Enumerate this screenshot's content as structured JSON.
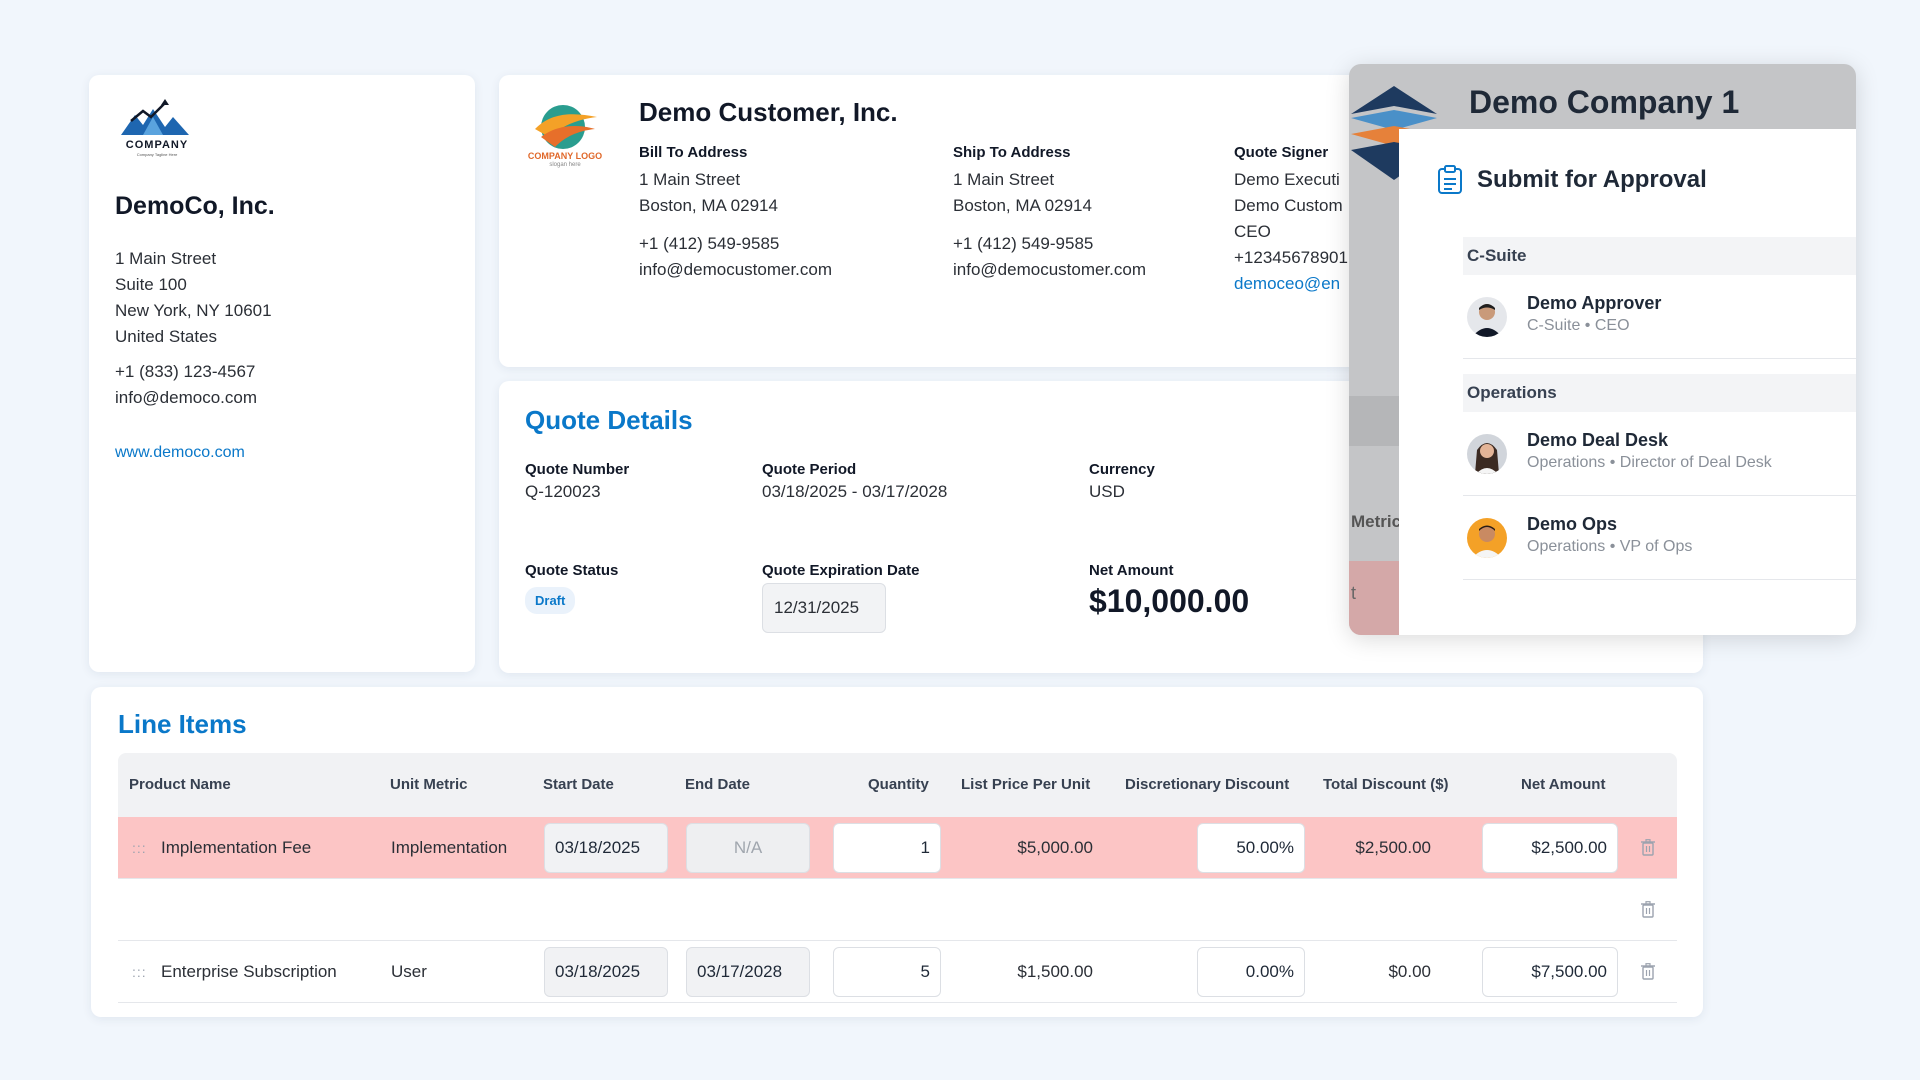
{
  "company": {
    "logo_text": "COMPANY",
    "logo_tagline": "Company Tagline Here",
    "name": "DemoCo, Inc.",
    "address": [
      "1 Main Street",
      "Suite 100",
      "New York, NY 10601",
      "United States"
    ],
    "phone": "+1 (833) 123-4567",
    "email": "info@democo.com",
    "website": "www.democo.com",
    "brand_color": "#1e66b0"
  },
  "customer": {
    "logo_text": "COMPANY LOGO",
    "logo_sub": "slogan here",
    "name": "Demo Customer, Inc.",
    "bill_to": {
      "label": "Bill To Address",
      "line1": "1 Main Street",
      "line2": "Boston, MA 02914",
      "phone": "+1 (412) 549-9585",
      "email": "info@democustomer.com"
    },
    "ship_to": {
      "label": "Ship To Address",
      "line1": "1 Main Street",
      "line2": "Boston, MA 02914",
      "phone": "+1 (412) 549-9585",
      "email": "info@democustomer.com"
    },
    "signer": {
      "label": "Quote Signer",
      "line1": "Demo Executi",
      "line2": "Demo Custom",
      "line3": "CEO",
      "phone": "+12345678901",
      "email": "democeo@en"
    }
  },
  "quote": {
    "title": "Quote Details",
    "number_label": "Quote Number",
    "number": "Q-120023",
    "period_label": "Quote Period",
    "period": "03/18/2025 - 03/17/2028",
    "currency_label": "Currency",
    "currency": "USD",
    "status_label": "Quote Status",
    "status": "Draft",
    "expiration_label": "Quote Expiration Date",
    "expiration": "12/31/2025",
    "net_label": "Net Amount",
    "net": "$10,000.00"
  },
  "line_items": {
    "title": "Line Items",
    "columns": {
      "product": "Product Name",
      "metric": "Unit Metric",
      "start": "Start Date",
      "end": "End Date",
      "qty": "Quantity",
      "list": "List Price Per Unit",
      "disc": "Discretionary Discount",
      "total_disc": "Total Discount ($)",
      "net": "Net Amount"
    },
    "rows": [
      {
        "product": "Implementation Fee",
        "metric": "Implementation",
        "start": "03/18/2025",
        "end": "N/A",
        "qty": "1",
        "list": "$5,000.00",
        "disc": "50.00%",
        "total_disc": "$2,500.00",
        "net": "$2,500.00"
      },
      {
        "product": "Enterprise Subscription",
        "metric": "User",
        "start": "03/18/2025",
        "end": "03/17/2028",
        "qty": "5",
        "list": "$1,500.00",
        "disc": "0.00%",
        "total_disc": "$0.00",
        "net": "$7,500.00"
      }
    ]
  },
  "popup": {
    "company_title": "Demo Company 1",
    "behind_metric": "Metric",
    "behind_letter": "t",
    "title": "Submit for Approval",
    "groups": [
      {
        "name": "C-Suite",
        "approvers": [
          {
            "name": "Demo Approver",
            "role": "C-Suite • CEO"
          }
        ]
      },
      {
        "name": "Operations",
        "approvers": [
          {
            "name": "Demo Deal Desk",
            "role": "Operations • Director of Deal Desk"
          },
          {
            "name": "Demo Ops",
            "role": "Operations • VP of Ops"
          }
        ]
      }
    ]
  }
}
